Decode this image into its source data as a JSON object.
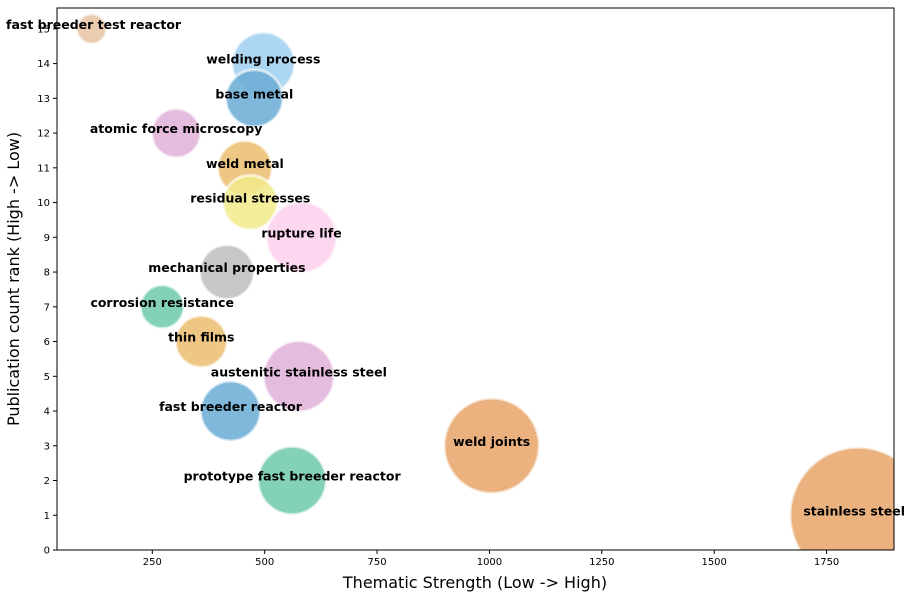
{
  "chart_data": {
    "type": "scatter",
    "subtype": "bubble",
    "title": "",
    "xlabel": "Thematic Strength (Low -> High)",
    "ylabel": "Publication count rank (High -> Low)",
    "xlim": [
      38,
      1900
    ],
    "ylim": [
      0,
      15.6
    ],
    "x_ticks": [
      250,
      500,
      750,
      1000,
      1250,
      1500,
      1750
    ],
    "y_ticks": [
      0,
      1,
      2,
      3,
      4,
      5,
      6,
      7,
      8,
      9,
      10,
      11,
      12,
      13,
      14,
      15
    ],
    "grid": false,
    "legend": "none",
    "points": [
      {
        "label": "fast breeder test reactor",
        "x": 115,
        "y": 15,
        "size": 0.22,
        "color": "#e6c3a3"
      },
      {
        "label": "welding process",
        "x": 497,
        "y": 14,
        "size": 0.46,
        "color": "#9ecfee"
      },
      {
        "label": "base metal",
        "x": 477,
        "y": 13,
        "size": 0.42,
        "color": "#6aabd6"
      },
      {
        "label": "atomic force microscopy",
        "x": 303,
        "y": 12,
        "size": 0.36,
        "color": "#dfb0d8"
      },
      {
        "label": "weld metal",
        "x": 456,
        "y": 11,
        "size": 0.4,
        "color": "#ecbd6e"
      },
      {
        "label": "residual stresses",
        "x": 468,
        "y": 10,
        "size": 0.4,
        "color": "#f2ea8a"
      },
      {
        "label": "rupture life",
        "x": 582,
        "y": 9,
        "size": 0.52,
        "color": "#fcd0ec"
      },
      {
        "label": "mechanical properties",
        "x": 416,
        "y": 8,
        "size": 0.4,
        "color": "#bdbdbd"
      },
      {
        "label": "corrosion resistance",
        "x": 272,
        "y": 7,
        "size": 0.32,
        "color": "#6dc9a9"
      },
      {
        "label": "thin films",
        "x": 359,
        "y": 6,
        "size": 0.38,
        "color": "#ecbd6e"
      },
      {
        "label": "austenitic stainless steel",
        "x": 576,
        "y": 5,
        "size": 0.52,
        "color": "#dfb0d8"
      },
      {
        "label": "fast breeder reactor",
        "x": 424,
        "y": 4,
        "size": 0.44,
        "color": "#6aabd6"
      },
      {
        "label": "prototype fast breeder reactor",
        "x": 561,
        "y": 2,
        "size": 0.5,
        "color": "#6dc9a9"
      },
      {
        "label": "weld joints",
        "x": 1005,
        "y": 3,
        "size": 0.7,
        "color": "#e8a468"
      },
      {
        "label": "stainless steel",
        "x": 1820,
        "y": 1,
        "size": 1.0,
        "color": "#e8a468"
      }
    ]
  }
}
